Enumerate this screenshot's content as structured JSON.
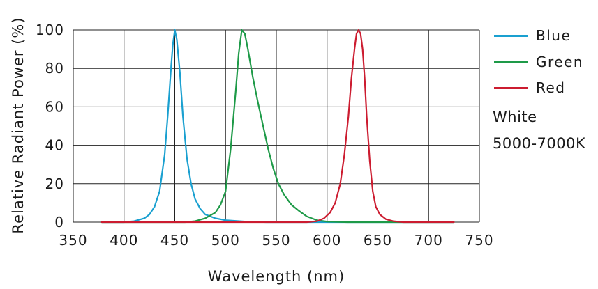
{
  "chart_data": {
    "type": "line",
    "title": "",
    "xlabel": "Wavelength (nm)",
    "ylabel": "Relative Radiant Power (%)",
    "xlim": [
      350,
      750
    ],
    "ylim": [
      0,
      100
    ],
    "x_ticks": [
      350,
      400,
      450,
      500,
      550,
      600,
      650,
      700,
      750
    ],
    "y_ticks": [
      0,
      20,
      40,
      60,
      80,
      100
    ],
    "grid": true,
    "legend_position": "right",
    "series": [
      {
        "name": "Blue",
        "color": "#1aa0d0",
        "points": [
          [
            378,
            0
          ],
          [
            400,
            0
          ],
          [
            410,
            0.5
          ],
          [
            420,
            2
          ],
          [
            425,
            4
          ],
          [
            430,
            8
          ],
          [
            435,
            16
          ],
          [
            440,
            35
          ],
          [
            443,
            55
          ],
          [
            446,
            78
          ],
          [
            448,
            92
          ],
          [
            450,
            100
          ],
          [
            452,
            95
          ],
          [
            455,
            78
          ],
          [
            458,
            55
          ],
          [
            462,
            33
          ],
          [
            466,
            20
          ],
          [
            470,
            12
          ],
          [
            475,
            7
          ],
          [
            480,
            4
          ],
          [
            490,
            2
          ],
          [
            500,
            1
          ],
          [
            520,
            0.3
          ],
          [
            540,
            0
          ],
          [
            725,
            0
          ]
        ]
      },
      {
        "name": "Green",
        "color": "#1e9a48",
        "points": [
          [
            378,
            0
          ],
          [
            460,
            0
          ],
          [
            470,
            0.5
          ],
          [
            480,
            2
          ],
          [
            490,
            5
          ],
          [
            495,
            9
          ],
          [
            500,
            16
          ],
          [
            505,
            38
          ],
          [
            510,
            68
          ],
          [
            513,
            88
          ],
          [
            516,
            100
          ],
          [
            519,
            98
          ],
          [
            522,
            90
          ],
          [
            527,
            75
          ],
          [
            532,
            62
          ],
          [
            537,
            50
          ],
          [
            542,
            38
          ],
          [
            547,
            28
          ],
          [
            552,
            20
          ],
          [
            558,
            14
          ],
          [
            565,
            9
          ],
          [
            572,
            6
          ],
          [
            580,
            3
          ],
          [
            590,
            1
          ],
          [
            600,
            0.3
          ],
          [
            620,
            0
          ],
          [
            725,
            0
          ]
        ]
      },
      {
        "name": "Red",
        "color": "#cc1c30",
        "points": [
          [
            378,
            0
          ],
          [
            580,
            0
          ],
          [
            590,
            0.5
          ],
          [
            597,
            2
          ],
          [
            603,
            5
          ],
          [
            608,
            10
          ],
          [
            613,
            20
          ],
          [
            617,
            35
          ],
          [
            621,
            55
          ],
          [
            624,
            75
          ],
          [
            627,
            90
          ],
          [
            629,
            98
          ],
          [
            631,
            100
          ],
          [
            633,
            98
          ],
          [
            635,
            90
          ],
          [
            637,
            75
          ],
          [
            639,
            55
          ],
          [
            642,
            32
          ],
          [
            645,
            16
          ],
          [
            648,
            8
          ],
          [
            652,
            4
          ],
          [
            658,
            1.5
          ],
          [
            665,
            0.5
          ],
          [
            675,
            0
          ],
          [
            725,
            0
          ]
        ]
      }
    ]
  },
  "legend": {
    "items": [
      {
        "label": "Blue",
        "color": "#1aa0d0"
      },
      {
        "label": "Green",
        "color": "#1e9a48"
      },
      {
        "label": "Red",
        "color": "#cc1c30"
      }
    ],
    "note_line1": "White",
    "note_line2": "5000-7000K"
  }
}
